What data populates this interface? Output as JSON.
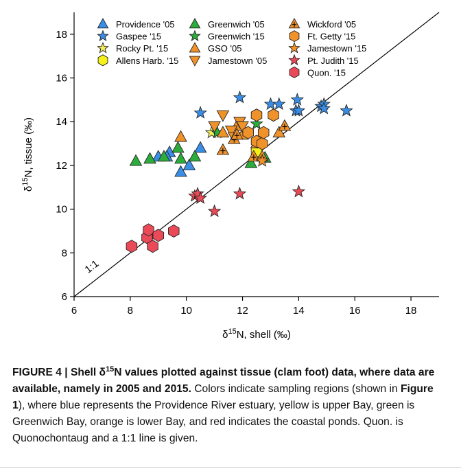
{
  "chart_data": {
    "type": "scatter",
    "x_axis": {
      "prefix": "δ",
      "sup": "15",
      "rest": "N, shell (‰)",
      "range": [
        6,
        19
      ],
      "ticks": [
        6,
        8,
        10,
        12,
        14,
        16,
        18
      ]
    },
    "y_axis": {
      "prefix": "δ",
      "sup": "15",
      "rest": "N, tissue (‰)",
      "range": [
        6,
        19
      ],
      "ticks": [
        6,
        8,
        10,
        12,
        14,
        16,
        18
      ]
    },
    "reference_line": {
      "label": "1:1",
      "from": [
        6,
        6
      ],
      "to": [
        19,
        19
      ]
    },
    "grid": false,
    "legend_position": "top",
    "series": [
      {
        "name": "Providence '05",
        "shape": "triangle",
        "color": "#3a8ee6",
        "points": [
          [
            9.0,
            12.4
          ],
          [
            9.4,
            12.6
          ],
          [
            9.8,
            11.7
          ],
          [
            10.1,
            12.0
          ],
          [
            10.5,
            12.8
          ],
          [
            9.3,
            12.4
          ]
        ]
      },
      {
        "name": "Gaspee '15",
        "shape": "star",
        "color": "#3a8ee6",
        "points": [
          [
            10.5,
            14.4
          ],
          [
            11.9,
            15.1
          ],
          [
            13.0,
            14.8
          ],
          [
            13.3,
            14.8
          ],
          [
            13.9,
            14.5
          ],
          [
            13.95,
            15.0
          ],
          [
            14.0,
            14.5
          ],
          [
            14.8,
            14.7
          ],
          [
            14.9,
            14.8
          ],
          [
            14.9,
            14.6
          ],
          [
            15.7,
            14.5
          ]
        ]
      },
      {
        "name": "Rocky Pt. '15",
        "shape": "star",
        "color": "#f2ea5a",
        "points": [
          [
            10.9,
            13.5
          ]
        ]
      },
      {
        "name": "Allens Harb. '15",
        "shape": "hexagon",
        "color": "#f5f118",
        "points": [
          [
            12.5,
            12.65
          ]
        ]
      },
      {
        "name": "Greenwich '05",
        "shape": "triangle",
        "color": "#2cac3a",
        "points": [
          [
            8.2,
            12.2
          ],
          [
            8.7,
            12.3
          ],
          [
            9.2,
            12.4
          ],
          [
            9.8,
            12.3
          ],
          [
            10.3,
            12.4
          ],
          [
            12.3,
            12.1
          ],
          [
            12.8,
            12.35
          ],
          [
            9.7,
            12.8
          ]
        ]
      },
      {
        "name": "Greenwich '15",
        "shape": "star",
        "color": "#2cac3a",
        "points": [
          [
            11.1,
            13.5
          ],
          [
            12.5,
            13.9
          ]
        ]
      },
      {
        "name": "GSO '05",
        "shape": "triangle",
        "color": "#f0922a",
        "points": [
          [
            9.8,
            13.3
          ],
          [
            11.3,
            13.5
          ],
          [
            11.8,
            13.8
          ],
          [
            12.0,
            13.4
          ],
          [
            12.5,
            13.0
          ],
          [
            13.3,
            13.5
          ]
        ]
      },
      {
        "name": "Jamestown '05",
        "shape": "triangle-down",
        "color": "#f0922a",
        "points": [
          [
            11.0,
            13.8
          ],
          [
            11.3,
            14.3
          ],
          [
            11.6,
            13.6
          ],
          [
            11.9,
            14.0
          ],
          [
            12.0,
            13.8
          ],
          [
            11.7,
            13.3
          ]
        ]
      },
      {
        "name": "Wickford '05",
        "shape": "triangle-cross",
        "color": "#f0922a",
        "points": [
          [
            11.3,
            12.7
          ],
          [
            11.7,
            13.2
          ],
          [
            12.4,
            12.4
          ],
          [
            12.7,
            12.4
          ],
          [
            13.5,
            13.8
          ],
          [
            11.8,
            13.4
          ]
        ]
      },
      {
        "name": "Ft. Getty '15",
        "shape": "hexagon",
        "color": "#f0922a",
        "points": [
          [
            12.2,
            13.5
          ],
          [
            12.5,
            14.3
          ],
          [
            12.5,
            13.1
          ],
          [
            12.7,
            13.0
          ],
          [
            12.75,
            13.5
          ],
          [
            13.1,
            14.3
          ]
        ]
      },
      {
        "name": "Jamestown '15",
        "shape": "star",
        "color": "#f0922a",
        "points": [
          [
            12.7,
            12.2
          ]
        ]
      },
      {
        "name": "Pt. Judith '15",
        "shape": "star",
        "color": "#ea4a57",
        "points": [
          [
            10.3,
            10.6
          ],
          [
            10.4,
            10.7
          ],
          [
            10.5,
            10.5
          ],
          [
            11.0,
            9.9
          ],
          [
            11.9,
            10.7
          ],
          [
            14.0,
            10.8
          ]
        ]
      },
      {
        "name": "Quon. '15",
        "shape": "hexagon",
        "color": "#ea4a57",
        "points": [
          [
            8.05,
            8.3
          ],
          [
            8.6,
            8.7
          ],
          [
            8.65,
            9.05
          ],
          [
            8.8,
            8.3
          ],
          [
            9.0,
            8.8
          ],
          [
            9.55,
            9.0
          ]
        ]
      }
    ]
  },
  "caption": {
    "fig_label": "FIGURE 4 | Shell ",
    "title_sym": "δ",
    "title_sup": "15",
    "title_rest": "N values plotted against tissue (clam foot) data, where data are available, namely in 2005 and 2015.",
    "body_1": " Colors indicate sampling regions (shown in ",
    "body_ref": "Figure 1",
    "body_2": "), where blue represents the Providence River estuary, yellow is upper Bay, green is Greenwich Bay, orange is lower Bay, and red indicates the coastal ponds. Quon. is Quonochontaug and a 1:1 line is given."
  }
}
